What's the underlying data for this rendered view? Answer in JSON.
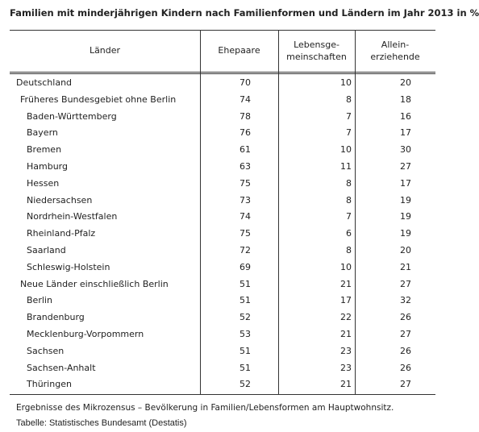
{
  "title": "Familien mit minderjährigen Kindern nach Familienformen und Ländern im Jahr 2013 in %",
  "table": {
    "headers": [
      "Länder",
      "Ehepaare",
      "Lebensge-\nmeinschaften",
      "Allein-\nerziehende"
    ],
    "rows": [
      [
        "Deutschland",
        70,
        10,
        20
      ],
      [
        "Früheres Bundesgebiet ohne Berlin",
        74,
        8,
        18
      ],
      [
        "Baden-Württemberg",
        78,
        7,
        16
      ],
      [
        "Bayern",
        76,
        7,
        17
      ],
      [
        "Bremen",
        61,
        10,
        30
      ],
      [
        "Hamburg",
        63,
        11,
        27
      ],
      [
        "Hessen",
        75,
        8,
        17
      ],
      [
        "Niedersachsen",
        73,
        8,
        19
      ],
      [
        "Nordrhein-Westfalen",
        74,
        7,
        19
      ],
      [
        "Rheinland-Pfalz",
        75,
        6,
        19
      ],
      [
        "Saarland",
        72,
        8,
        20
      ],
      [
        "Schleswig-Holstein",
        69,
        10,
        21
      ],
      [
        "Neue Länder einschließlich Berlin",
        51,
        21,
        27
      ],
      [
        "Berlin",
        51,
        17,
        32
      ],
      [
        "Brandenburg",
        52,
        22,
        26
      ],
      [
        "Mecklenburg-Vorpommern",
        53,
        21,
        27
      ],
      [
        "Sachsen",
        51,
        23,
        26
      ],
      [
        "Sachsen-Anhalt",
        51,
        23,
        26
      ],
      [
        "Thüringen",
        52,
        21,
        27
      ]
    ]
  },
  "footnote": "Ergebnisse des Mikrozensus – Bevölkerung in Familien/Lebensformen am Hauptwohnsitz.",
  "source": "Tabelle: Statistisches Bundesamt (Destatis)"
}
